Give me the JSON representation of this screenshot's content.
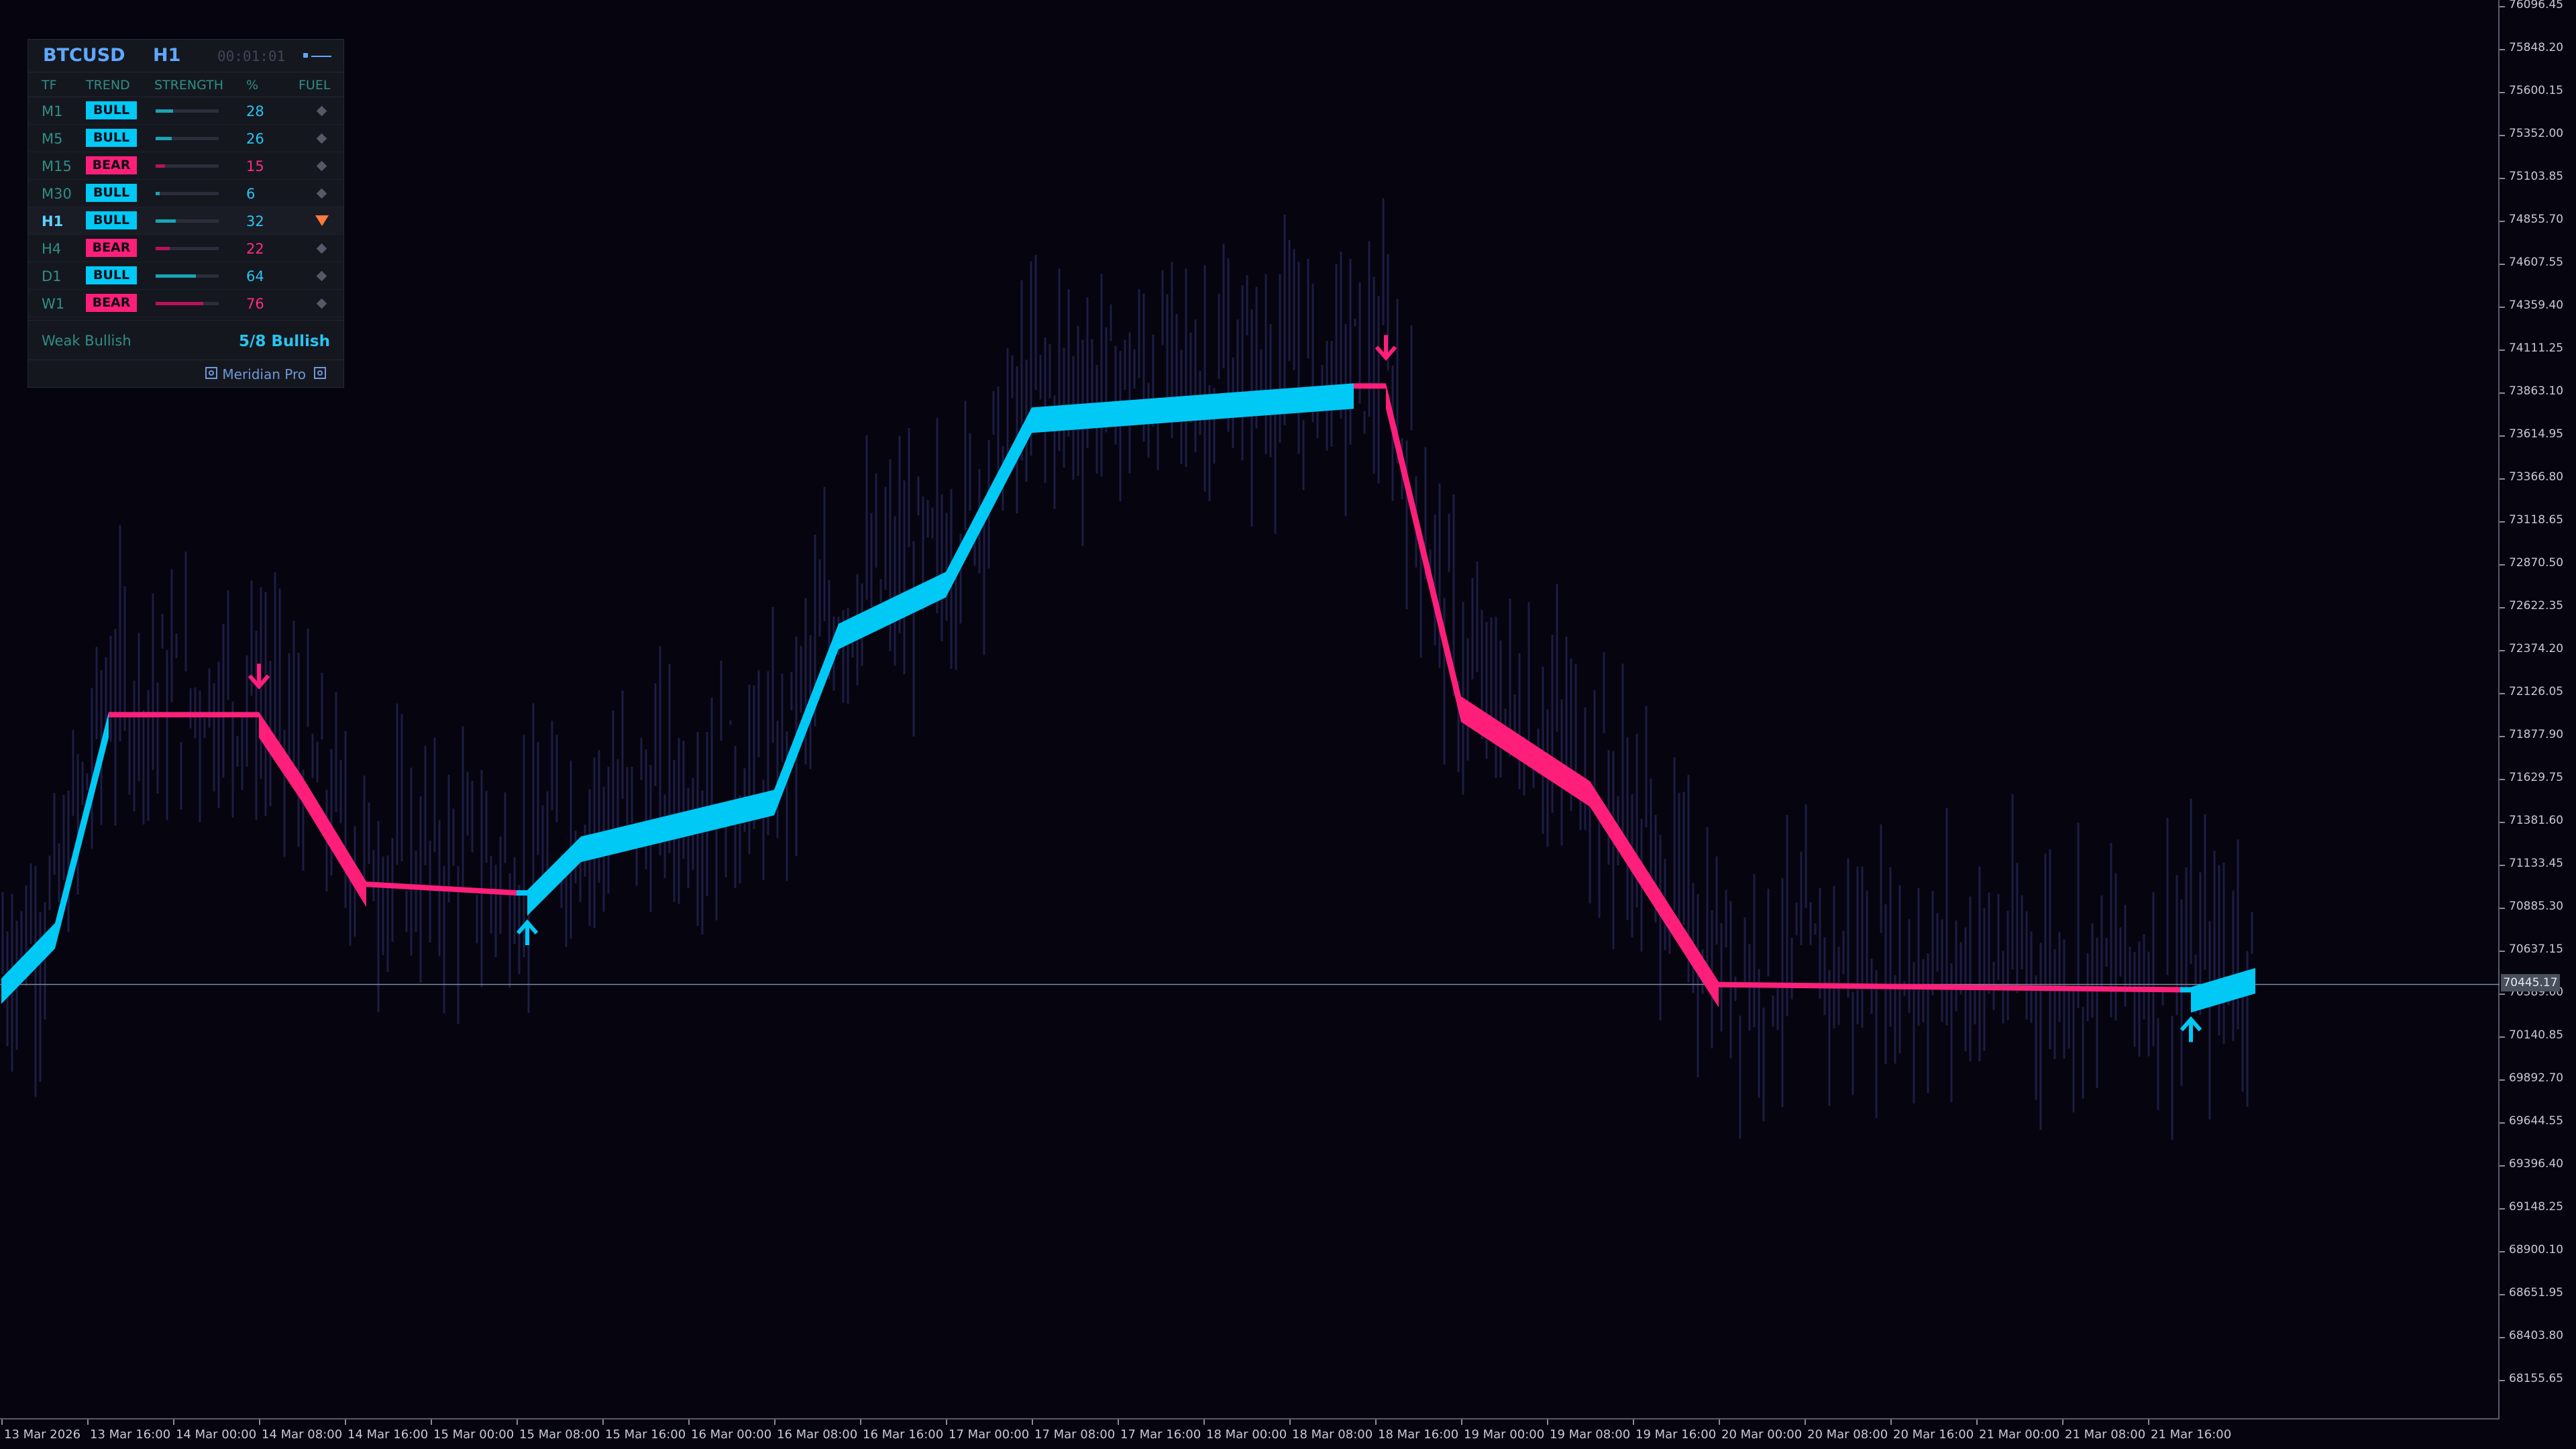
{
  "panel": {
    "symbol": "BTCUSD",
    "timeframe": "H1",
    "timer": "00:01:01",
    "columns": {
      "tf": "TF",
      "trend": "TREND",
      "strength": "STRENGTH",
      "pct": "%",
      "fuel": "FUEL"
    },
    "rows": [
      {
        "tf": "M1",
        "trend": "BULL",
        "pct": "28",
        "strength": 0.28,
        "fuel": "diamond-icon"
      },
      {
        "tf": "M5",
        "trend": "BULL",
        "pct": "26",
        "strength": 0.26,
        "fuel": "diamond-icon"
      },
      {
        "tf": "M15",
        "trend": "BEAR",
        "pct": "15",
        "strength": 0.15,
        "fuel": "diamond-icon"
      },
      {
        "tf": "M30",
        "trend": "BULL",
        "pct": "6",
        "strength": 0.06,
        "fuel": "diamond-icon"
      },
      {
        "tf": "H1",
        "trend": "BULL",
        "pct": "32",
        "strength": 0.32,
        "fuel": "warning-triangle-icon",
        "current": true
      },
      {
        "tf": "H4",
        "trend": "BEAR",
        "pct": "22",
        "strength": 0.22,
        "fuel": "diamond-icon"
      },
      {
        "tf": "D1",
        "trend": "BULL",
        "pct": "64",
        "strength": 0.64,
        "fuel": "diamond-icon"
      },
      {
        "tf": "W1",
        "trend": "BEAR",
        "pct": "76",
        "strength": 0.76,
        "fuel": "diamond-icon"
      }
    ],
    "summary_left": "Weak Bullish",
    "summary_right": "5/8 Bullish",
    "footer_label": "Meridian Pro"
  },
  "colors": {
    "background": "#05040f",
    "bull": "#00c9f5",
    "bear": "#ff1f7a",
    "candles": "#1d1d44",
    "accent": "#5fa8ff"
  },
  "price_axis": {
    "labels": [
      "76096.45",
      "75848.20",
      "75600.15",
      "75352.00",
      "75103.85",
      "74855.70",
      "74607.55",
      "74359.40",
      "74111.25",
      "73863.10",
      "73614.95",
      "73366.80",
      "73118.65",
      "72870.50",
      "72622.35",
      "72374.20",
      "72126.05",
      "71877.90",
      "71629.75",
      "71381.60",
      "71133.45",
      "70885.30",
      "70637.15",
      "70389.00",
      "70140.85",
      "69892.70",
      "69644.55",
      "69396.40",
      "69148.25",
      "68900.10",
      "68651.95",
      "68403.80",
      "68155.65"
    ],
    "current_price": "70445.17"
  },
  "time_axis": {
    "labels": [
      "13 Mar 2026",
      "13 Mar 16:00",
      "14 Mar 00:00",
      "14 Mar 08:00",
      "14 Mar 16:00",
      "15 Mar 00:00",
      "15 Mar 08:00",
      "15 Mar 16:00",
      "16 Mar 00:00",
      "16 Mar 08:00",
      "16 Mar 16:00",
      "17 Mar 00:00",
      "17 Mar 08:00",
      "17 Mar 16:00",
      "18 Mar 00:00",
      "18 Mar 08:00",
      "18 Mar 16:00",
      "19 Mar 00:00",
      "19 Mar 08:00",
      "19 Mar 16:00",
      "20 Mar 00:00",
      "20 Mar 08:00",
      "20 Mar 16:00",
      "21 Mar 00:00",
      "21 Mar 08:00",
      "21 Mar 16:00"
    ]
  },
  "chart_data": {
    "type": "line",
    "symbol": "BTCUSD",
    "timeframe": "H1",
    "ylim": [
      68100,
      76100
    ],
    "current_price": 70445.17,
    "trend_line": [
      {
        "x": "13 Mar 00:00",
        "y": 70480,
        "trend": "bull"
      },
      {
        "x": "13 Mar 05:00",
        "y": 70800,
        "trend": "bull"
      },
      {
        "x": "13 Mar 10:00",
        "y": 72020,
        "trend": "bull"
      },
      {
        "x": "14 Mar 00:00",
        "y": 72020,
        "trend": "bear"
      },
      {
        "x": "14 Mar 04:00",
        "y": 71650,
        "trend": "bear"
      },
      {
        "x": "14 Mar 10:00",
        "y": 71040,
        "trend": "bear"
      },
      {
        "x": "15 Mar 00:00",
        "y": 70990,
        "trend": "bear"
      },
      {
        "x": "15 Mar 01:00",
        "y": 70990,
        "trend": "bull"
      },
      {
        "x": "15 Mar 06:00",
        "y": 71300,
        "trend": "bull"
      },
      {
        "x": "16 Mar 00:00",
        "y": 71570,
        "trend": "bull"
      },
      {
        "x": "16 Mar 06:00",
        "y": 72530,
        "trend": "bull"
      },
      {
        "x": "16 Mar 16:00",
        "y": 72830,
        "trend": "bull"
      },
      {
        "x": "17 Mar 00:00",
        "y": 73780,
        "trend": "bull"
      },
      {
        "x": "18 Mar 06:00",
        "y": 73920,
        "trend": "bull"
      },
      {
        "x": "18 Mar 09:00",
        "y": 73920,
        "trend": "bear"
      },
      {
        "x": "18 Mar 16:00",
        "y": 72110,
        "trend": "bear"
      },
      {
        "x": "19 Mar 04:00",
        "y": 71620,
        "trend": "bear"
      },
      {
        "x": "19 Mar 16:00",
        "y": 70460,
        "trend": "bear"
      },
      {
        "x": "21 Mar 11:00",
        "y": 70430,
        "trend": "bear"
      },
      {
        "x": "21 Mar 12:00",
        "y": 70430,
        "trend": "bull"
      },
      {
        "x": "21 Mar 18:00",
        "y": 70540,
        "trend": "bull"
      }
    ],
    "signals": [
      {
        "type": "sell",
        "x": "14 Mar 00:00",
        "label": "down-arrow"
      },
      {
        "type": "buy",
        "x": "15 Mar 01:00",
        "label": "up-arrow"
      },
      {
        "type": "sell",
        "x": "18 Mar 09:00",
        "label": "down-arrow"
      },
      {
        "type": "buy",
        "x": "21 Mar 12:00",
        "label": "up-arrow"
      }
    ],
    "grid": false,
    "legend": "none"
  }
}
